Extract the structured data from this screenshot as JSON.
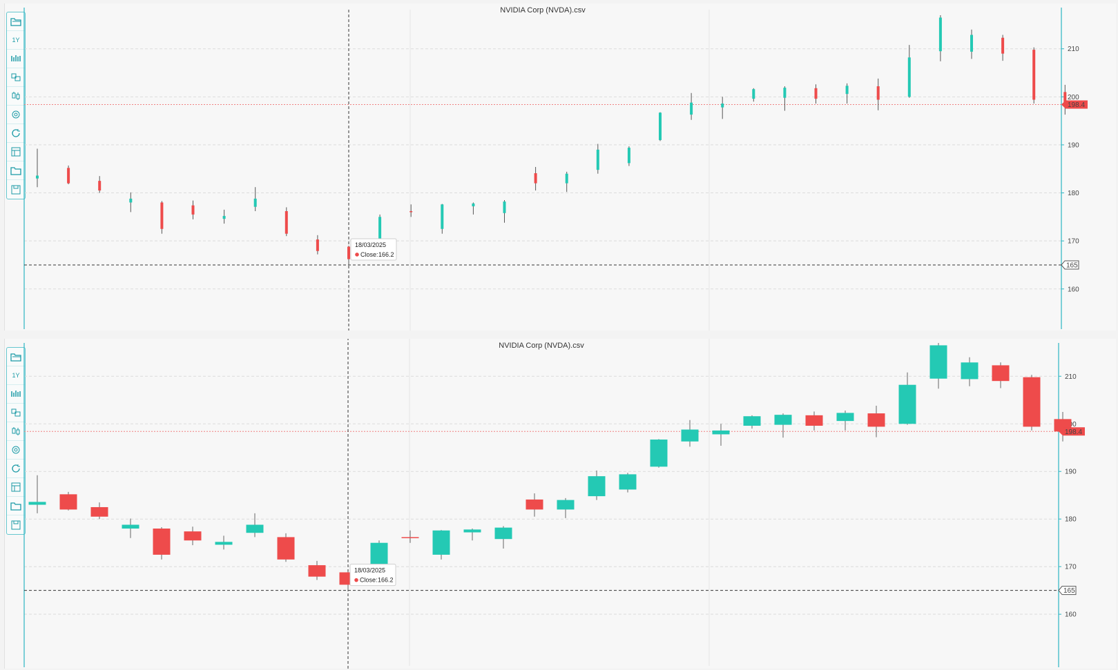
{
  "colors": {
    "up": "#24c9b4",
    "down": "#ee4b4b",
    "axis": "#2bb5c2",
    "last_price_line": "#f08080",
    "crosshair": "#333333"
  },
  "toolbar": {
    "period_label": "1Y",
    "icons": [
      "open-folder-icon",
      "period-1y-icon",
      "indicators-icon",
      "compare-icon",
      "candles-icon",
      "settings-icon",
      "refresh-icon",
      "layout-icon",
      "folder-icon",
      "save-icon"
    ]
  },
  "panels": [
    {
      "title": "NVIDIA Corp (NVDA).csv",
      "style": "thin",
      "last_price_label": "198.4",
      "crosshair_label": "165",
      "tooltip": {
        "date": "18/03/2025",
        "close_label": "Close:",
        "close_value": "166.2"
      }
    },
    {
      "title": "NVIDIA Corp (NVDA).csv",
      "style": "wide",
      "last_price_label": "198.4",
      "crosshair_label": "165",
      "tooltip": {
        "date": "18/03/2025",
        "close_label": "Close:",
        "close_value": "166.2"
      }
    }
  ],
  "chart_data": {
    "type": "candlestick",
    "title": "NVIDIA Corp (NVDA).csv",
    "ylim": [
      153.5,
      217
    ],
    "yticks": [
      160,
      170,
      180,
      190,
      200,
      210
    ],
    "last_price": 198.4,
    "crosshair_price": 165,
    "crosshair_index": 10,
    "grid": true,
    "candles": [
      {
        "o": 183.0,
        "h": 189.2,
        "l": 181.2,
        "c": 183.6
      },
      {
        "o": 185.2,
        "h": 185.7,
        "l": 181.8,
        "c": 182.0
      },
      {
        "o": 182.5,
        "h": 183.5,
        "l": 180.0,
        "c": 180.5
      },
      {
        "o": 178.0,
        "h": 180.1,
        "l": 176.0,
        "c": 178.8
      },
      {
        "o": 178.0,
        "h": 178.3,
        "l": 171.5,
        "c": 172.5
      },
      {
        "o": 177.4,
        "h": 178.4,
        "l": 174.5,
        "c": 175.5
      },
      {
        "o": 174.6,
        "h": 176.5,
        "l": 173.6,
        "c": 175.2
      },
      {
        "o": 177.1,
        "h": 181.2,
        "l": 176.2,
        "c": 178.8
      },
      {
        "o": 176.2,
        "h": 177.0,
        "l": 171.0,
        "c": 171.5
      },
      {
        "o": 170.3,
        "h": 171.2,
        "l": 167.2,
        "c": 167.9
      },
      {
        "o": 168.8,
        "h": 169.0,
        "l": 165.0,
        "c": 166.2
      },
      {
        "o": 169.5,
        "h": 175.5,
        "l": 168.5,
        "c": 175.0
      },
      {
        "o": 176.2,
        "h": 177.6,
        "l": 175.0,
        "c": 176.0
      },
      {
        "o": 172.5,
        "h": 177.7,
        "l": 171.5,
        "c": 177.6
      },
      {
        "o": 177.2,
        "h": 178.0,
        "l": 175.5,
        "c": 177.8
      },
      {
        "o": 175.8,
        "h": 178.5,
        "l": 173.8,
        "c": 178.2
      },
      {
        "o": 184.1,
        "h": 185.4,
        "l": 180.5,
        "c": 182.0
      },
      {
        "o": 182.0,
        "h": 184.4,
        "l": 180.2,
        "c": 184.0
      },
      {
        "o": 184.8,
        "h": 190.2,
        "l": 184.0,
        "c": 189.0
      },
      {
        "o": 186.2,
        "h": 189.7,
        "l": 185.6,
        "c": 189.4
      },
      {
        "o": 191.0,
        "h": 196.8,
        "l": 190.8,
        "c": 196.7
      },
      {
        "o": 196.3,
        "h": 200.8,
        "l": 195.2,
        "c": 198.8
      },
      {
        "o": 197.8,
        "h": 200.0,
        "l": 195.4,
        "c": 198.6
      },
      {
        "o": 199.6,
        "h": 201.8,
        "l": 199.0,
        "c": 201.6
      },
      {
        "o": 199.8,
        "h": 202.2,
        "l": 197.1,
        "c": 201.9
      },
      {
        "o": 201.8,
        "h": 202.6,
        "l": 198.6,
        "c": 199.6
      },
      {
        "o": 200.6,
        "h": 202.8,
        "l": 198.6,
        "c": 202.3
      },
      {
        "o": 202.2,
        "h": 203.8,
        "l": 197.2,
        "c": 199.4
      },
      {
        "o": 200.0,
        "h": 210.8,
        "l": 199.8,
        "c": 208.2
      },
      {
        "o": 209.5,
        "h": 217.0,
        "l": 207.4,
        "c": 216.5
      },
      {
        "o": 209.4,
        "h": 214.0,
        "l": 207.9,
        "c": 212.9
      },
      {
        "o": 212.3,
        "h": 212.9,
        "l": 207.5,
        "c": 209.0
      },
      {
        "o": 209.8,
        "h": 210.3,
        "l": 198.6,
        "c": 199.4
      },
      {
        "o": 201.0,
        "h": 202.5,
        "l": 196.3,
        "c": 198.4
      }
    ]
  }
}
